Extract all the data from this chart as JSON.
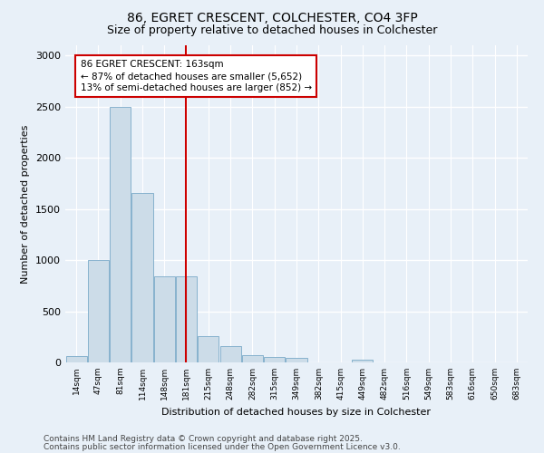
{
  "title_line1": "86, EGRET CRESCENT, COLCHESTER, CO4 3FP",
  "title_line2": "Size of property relative to detached houses in Colchester",
  "xlabel": "Distribution of detached houses by size in Colchester",
  "ylabel": "Number of detached properties",
  "bar_color": "#ccdce8",
  "bar_edge_color": "#7aaac8",
  "categories": [
    "14sqm",
    "47sqm",
    "81sqm",
    "114sqm",
    "148sqm",
    "181sqm",
    "215sqm",
    "248sqm",
    "282sqm",
    "315sqm",
    "349sqm",
    "382sqm",
    "415sqm",
    "449sqm",
    "482sqm",
    "516sqm",
    "549sqm",
    "583sqm",
    "616sqm",
    "650sqm",
    "683sqm"
  ],
  "values": [
    60,
    1000,
    2500,
    1660,
    840,
    840,
    260,
    160,
    70,
    50,
    40,
    0,
    0,
    30,
    0,
    0,
    0,
    0,
    0,
    0,
    0
  ],
  "vline_x": 4.97,
  "vline_color": "#cc0000",
  "ylim": [
    0,
    3100
  ],
  "yticks": [
    0,
    500,
    1000,
    1500,
    2000,
    2500,
    3000
  ],
  "annotation_text": "86 EGRET CRESCENT: 163sqm\n← 87% of detached houses are smaller (5,652)\n13% of semi-detached houses are larger (852) →",
  "annotation_box_color": "#ffffff",
  "annotation_box_edge": "#cc0000",
  "footer_line1": "Contains HM Land Registry data © Crown copyright and database right 2025.",
  "footer_line2": "Contains public sector information licensed under the Open Government Licence v3.0.",
  "background_color": "#e8f0f8",
  "plot_bg_color": "#e8f0f8",
  "title_fontsize": 10,
  "subtitle_fontsize": 9,
  "footer_fontsize": 6.5,
  "annotation_fontsize": 7.5,
  "ylabel_fontsize": 8,
  "xlabel_fontsize": 8
}
